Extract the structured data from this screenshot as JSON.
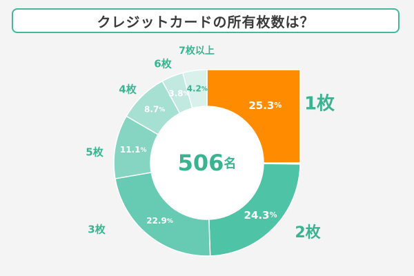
{
  "title": "クレジットカードの所有枚数は？",
  "chart_data": {
    "type": "pie",
    "title": "クレジットカードの所有枚数は？",
    "center_label": {
      "number": "506",
      "unit": "名"
    },
    "percent_unit": "%",
    "slices": [
      {
        "name": "1枚",
        "value": 25.3,
        "color": "#ff8c00",
        "label_color": "#ffffff",
        "name_color": "#3ab391",
        "big": true
      },
      {
        "name": "2枚",
        "value": 24.3,
        "color": "#4ec3a6",
        "label_color": "#ffffff",
        "name_color": "#3ab391",
        "big": true
      },
      {
        "name": "3枚",
        "value": 22.9,
        "color": "#66cbb2",
        "label_color": "#ffffff",
        "name_color": "#3ab391",
        "big": false
      },
      {
        "name": "5枚",
        "value": 11.1,
        "color": "#86d5c2",
        "label_color": "#ffffff",
        "name_color": "#3ab391",
        "big": false
      },
      {
        "name": "4枚",
        "value": 8.7,
        "color": "#a5e0d2",
        "label_color": "#ffffff",
        "name_color": "#3ab391",
        "big": false
      },
      {
        "name": "6枚",
        "value": 3.8,
        "color": "#c1e9e0",
        "label_color": "#ffffff",
        "name_color": "#3ab391",
        "big": false
      },
      {
        "name": "7枚以上",
        "value": 4.2,
        "color": "#d8f1eb",
        "label_color": "#3ab391",
        "name_color": "#3ab391",
        "big": false
      }
    ]
  }
}
